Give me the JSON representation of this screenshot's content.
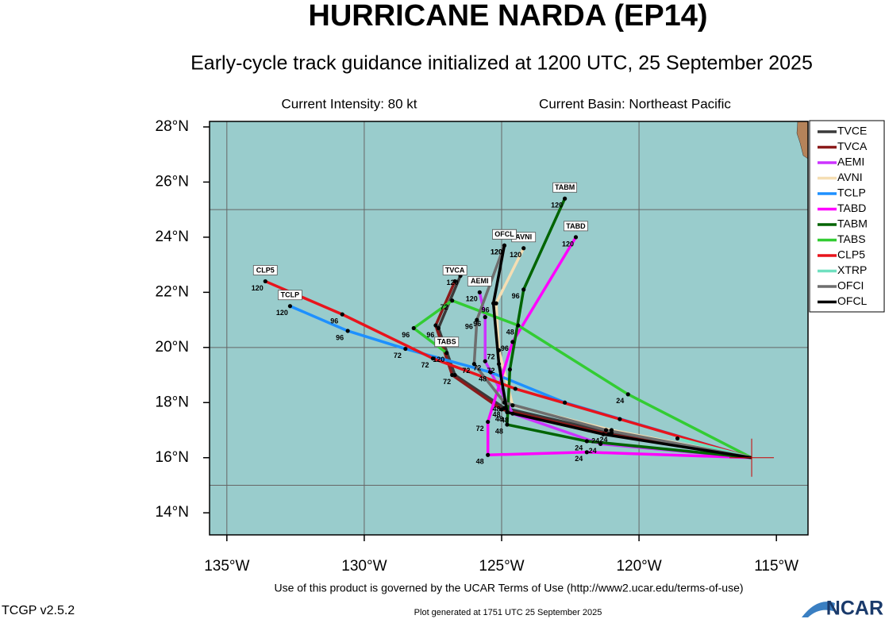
{
  "title": "HURRICANE NARDA (EP14)",
  "subtitle": "Early-cycle track guidance initialized at 1200 UTC, 25 September 2025",
  "intensity": "Current Intensity: 80 kt",
  "basin": "Current Basin: Northeast Pacific",
  "map": {
    "xlim": [
      -135.63,
      -113.85
    ],
    "ylim": [
      13.2,
      28.2
    ],
    "xticks": [
      {
        "value": -135,
        "label": "135°W"
      },
      {
        "value": -130,
        "label": "130°W"
      },
      {
        "value": -125,
        "label": "125°W"
      },
      {
        "value": -120,
        "label": "120°W"
      },
      {
        "value": -115,
        "label": "115°W"
      }
    ],
    "yticks": [
      {
        "value": 14,
        "label": "14°N"
      },
      {
        "value": 16,
        "label": "16°N"
      },
      {
        "value": 18,
        "label": "18°N"
      },
      {
        "value": 20,
        "label": "20°N"
      },
      {
        "value": 22,
        "label": "22°N"
      },
      {
        "value": 24,
        "label": "24°N"
      },
      {
        "value": 26,
        "label": "26°N"
      },
      {
        "value": 28,
        "label": "28°N"
      }
    ],
    "grid_lon": [
      -135,
      -130,
      -125,
      -120
    ],
    "grid_lat": [
      15,
      20,
      25
    ],
    "tracks": [
      {
        "name": "TVCE",
        "color": "#3a3a3a",
        "tag": false,
        "lon": [
          -115.9,
          -121.0,
          -124.9,
          -126.7,
          -127.3,
          -126.5
        ],
        "lat": [
          16.0,
          16.9,
          17.8,
          19.0,
          20.7,
          22.6
        ],
        "hour_labels": [
          null,
          24,
          48,
          72,
          96,
          120
        ]
      },
      {
        "name": "TVCA",
        "color": "#8b1a1a",
        "tag": true,
        "lon": [
          -115.9,
          -121.1,
          -125.0,
          -126.8,
          -127.4,
          -126.7
        ],
        "lat": [
          16.0,
          16.85,
          17.75,
          19.0,
          20.8,
          22.4
        ],
        "hour_labels": [
          null,
          null,
          null,
          null,
          null,
          null
        ]
      },
      {
        "name": "AEMI",
        "color": "#cc33ff",
        "tag": true,
        "lon": [
          -115.9,
          -121.4,
          -124.6,
          -125.6,
          -125.6,
          -125.8
        ],
        "lat": [
          16.0,
          16.5,
          17.6,
          19.5,
          21.1,
          22.0
        ],
        "hour_labels": [
          null,
          24,
          48,
          72,
          96,
          120
        ]
      },
      {
        "name": "AVNI",
        "color": "#f5deb3",
        "tag": true,
        "lon": [
          -115.9,
          -121.0,
          -124.6,
          -125.1,
          -125.2,
          -124.2
        ],
        "lat": [
          16.0,
          17.0,
          17.9,
          19.9,
          21.6,
          23.6
        ],
        "hour_labels": [
          null,
          null,
          null,
          72,
          null,
          120
        ]
      },
      {
        "name": "TCLP",
        "color": "#1e90ff",
        "tag": true,
        "lon": [
          -115.9,
          -122.7,
          -125.4,
          -128.5,
          -130.6,
          -132.7
        ],
        "lat": [
          16.0,
          18.0,
          19.1,
          19.95,
          20.6,
          21.5
        ],
        "hour_labels": [
          null,
          null,
          48,
          72,
          96,
          120
        ]
      },
      {
        "name": "TABD",
        "color": "#ff00ff",
        "tag": true,
        "lon": [
          -115.9,
          -121.9,
          -125.5,
          -125.5,
          -124.6,
          -122.3
        ],
        "lat": [
          16.0,
          16.2,
          16.1,
          17.3,
          20.2,
          24.0
        ],
        "hour_labels": [
          null,
          24,
          48,
          72,
          96,
          120
        ]
      },
      {
        "name": "TABM",
        "color": "#006400",
        "tag": true,
        "lon": [
          -115.9,
          -121.9,
          -124.8,
          -124.7,
          -124.2,
          -122.7
        ],
        "lat": [
          16.0,
          16.6,
          17.2,
          19.2,
          22.1,
          25.4
        ],
        "hour_labels": [
          null,
          24,
          48,
          null,
          96,
          120
        ]
      },
      {
        "name": "TABS",
        "color": "#33cc33",
        "tag": true,
        "lon": [
          -115.9,
          -120.4,
          -124.4,
          -126.8,
          -128.2,
          -127.0
        ],
        "lat": [
          16.0,
          18.3,
          20.8,
          21.7,
          20.7,
          19.8
        ],
        "hour_labels": [
          null,
          24,
          48,
          72,
          96,
          120
        ]
      },
      {
        "name": "CLP5",
        "color": "#e8141c",
        "tag": true,
        "lon": [
          -115.9,
          -120.7,
          -124.5,
          -127.5,
          -130.8,
          -133.6
        ],
        "lat": [
          16.0,
          17.4,
          18.5,
          19.6,
          21.2,
          22.4
        ],
        "hour_labels": [
          null,
          null,
          null,
          72,
          96,
          120
        ]
      },
      {
        "name": "XTRP",
        "color": "#70e0c0",
        "tag": false,
        "lon": [
          -115.9,
          -118.6
        ],
        "lat": [
          16.0,
          16.7
        ],
        "hour_labels": [
          null,
          null
        ]
      },
      {
        "name": "OFCI",
        "color": "#6e6e6e",
        "tag": true,
        "lon": [
          -115.9,
          -121.2,
          -124.9,
          -126.0,
          -125.9,
          -124.9
        ],
        "lat": [
          16.0,
          17.0,
          18.0,
          19.4,
          21.0,
          23.7
        ],
        "hour_labels": [
          null,
          null,
          48,
          72,
          96,
          120
        ]
      },
      {
        "name": "OFCL",
        "color": "#000000",
        "tag": true,
        "lon": [
          -115.9,
          -121.3,
          -124.8,
          -125.1,
          -125.3,
          -124.9
        ],
        "lat": [
          16.0,
          16.85,
          17.65,
          19.4,
          21.6,
          23.7
        ],
        "hour_labels": [
          null,
          24,
          48,
          72,
          96,
          120
        ]
      }
    ]
  },
  "footer": {
    "terms": "Use of this product is governed by the UCAR Terms of Use (http://www2.ucar.edu/terms-of-use)",
    "version": "TCGP v2.5.2",
    "generated": "Plot generated at 1751 UTC   25 September 2025",
    "logo": "NCAR"
  }
}
